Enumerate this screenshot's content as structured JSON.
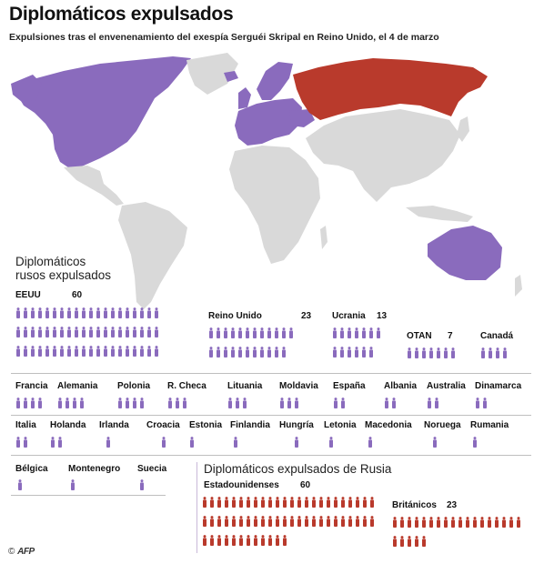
{
  "header": {
    "title": "Diplomáticos expulsados",
    "subtitle": "Expulsiones tras el envenenamiento del exespía Serguéi Skripal en Reino Unido, el 4 de marzo"
  },
  "colors": {
    "expelling": "#8a6bbd",
    "russia": "#b93a2c",
    "neutral": "#d9d9d9",
    "sea": "#ffffff"
  },
  "panel_russian": {
    "title_line1": "Diplomáticos",
    "title_line2": "rusos expulsados"
  },
  "panel_western": {
    "title": "Diplomáticos expulsados de Rusia"
  },
  "countries": [
    {
      "name": "EEUU",
      "count": "60",
      "n": 60
    },
    {
      "name": "Reino Unido",
      "count": "23",
      "n": 23
    },
    {
      "name": "Ucrania",
      "count": "13",
      "n": 13
    },
    {
      "name": "OTAN",
      "count": "7",
      "n": 7
    },
    {
      "name": "Canadá",
      "count": "",
      "n": 4
    },
    {
      "name": "Francia",
      "count": "",
      "n": 4
    },
    {
      "name": "Alemania",
      "count": "",
      "n": 4
    },
    {
      "name": "Polonia",
      "count": "",
      "n": 4
    },
    {
      "name": "R. Checa",
      "count": "",
      "n": 3
    },
    {
      "name": "Lituania",
      "count": "",
      "n": 3
    },
    {
      "name": "Moldavia",
      "count": "",
      "n": 3
    },
    {
      "name": "España",
      "count": "",
      "n": 2
    },
    {
      "name": "Albania",
      "count": "",
      "n": 2
    },
    {
      "name": "Australia",
      "count": "",
      "n": 2
    },
    {
      "name": "Dinamarca",
      "count": "",
      "n": 2
    },
    {
      "name": "Italia",
      "count": "",
      "n": 2
    },
    {
      "name": "Holanda",
      "count": "",
      "n": 2
    },
    {
      "name": "Irlanda",
      "count": "",
      "n": 1
    },
    {
      "name": "Croacia",
      "count": "",
      "n": 1
    },
    {
      "name": "Estonia",
      "count": "",
      "n": 1
    },
    {
      "name": "Finlandia",
      "count": "",
      "n": 1
    },
    {
      "name": "Hungría",
      "count": "",
      "n": 1
    },
    {
      "name": "Letonia",
      "count": "",
      "n": 1
    },
    {
      "name": "Macedonia",
      "count": "",
      "n": 1
    },
    {
      "name": "Noruega",
      "count": "",
      "n": 1
    },
    {
      "name": "Rumania",
      "count": "",
      "n": 1
    },
    {
      "name": "Bélgica",
      "count": "",
      "n": 1
    },
    {
      "name": "Montenegro",
      "count": "",
      "n": 1
    },
    {
      "name": "Suecia",
      "count": "",
      "n": 1
    }
  ],
  "expelled_from_russia": [
    {
      "name": "Estadounidenses",
      "count": "60",
      "n": 60
    },
    {
      "name": "Británicos",
      "count": "23",
      "n": 23
    }
  ],
  "credit": {
    "symbol": "©",
    "agency": "AFP"
  }
}
